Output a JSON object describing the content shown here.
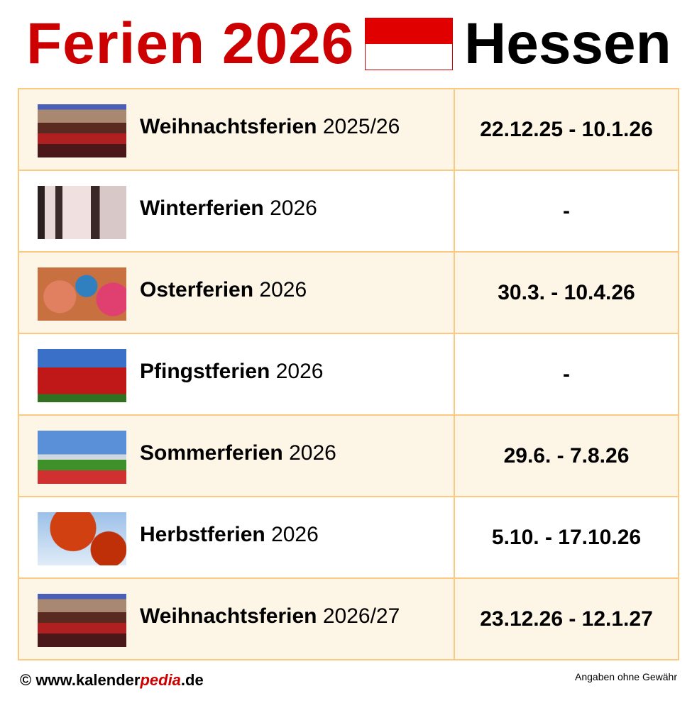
{
  "header": {
    "title_left": "Ferien 2026",
    "title_right": "Hessen",
    "flag_colors": [
      "#e00000",
      "#ffffff"
    ]
  },
  "rows": [
    {
      "name": "Weihnachtsferien",
      "year": "2025/26",
      "dates": "22.12.25 - 10.1.26",
      "image": "christmas-market"
    },
    {
      "name": "Winterferien",
      "year": "2026",
      "dates": "-",
      "image": "winter-avenue"
    },
    {
      "name": "Osterferien",
      "year": "2026",
      "dates": "30.3. - 10.4.26",
      "image": "easter-eggs"
    },
    {
      "name": "Pfingstferien",
      "year": "2026",
      "dates": "-",
      "image": "tulips"
    },
    {
      "name": "Sommerferien",
      "year": "2026",
      "dates": "29.6. - 7.8.26",
      "image": "summer-park"
    },
    {
      "name": "Herbstferien",
      "year": "2026",
      "dates": "5.10. - 17.10.26",
      "image": "autumn-leaves"
    },
    {
      "name": "Weihnachtsferien",
      "year": "2026/27",
      "dates": "23.12.26 - 12.1.27",
      "image": "christmas-market"
    }
  ],
  "footer": {
    "copyright": "© www.kalender",
    "brand_accent": "pedia",
    "domain": ".de",
    "disclaimer": "Angaben ohne Gewähr"
  },
  "colors": {
    "accent": "#cc0000",
    "border": "#fdc981",
    "row_alt": "#fdf5e6"
  }
}
